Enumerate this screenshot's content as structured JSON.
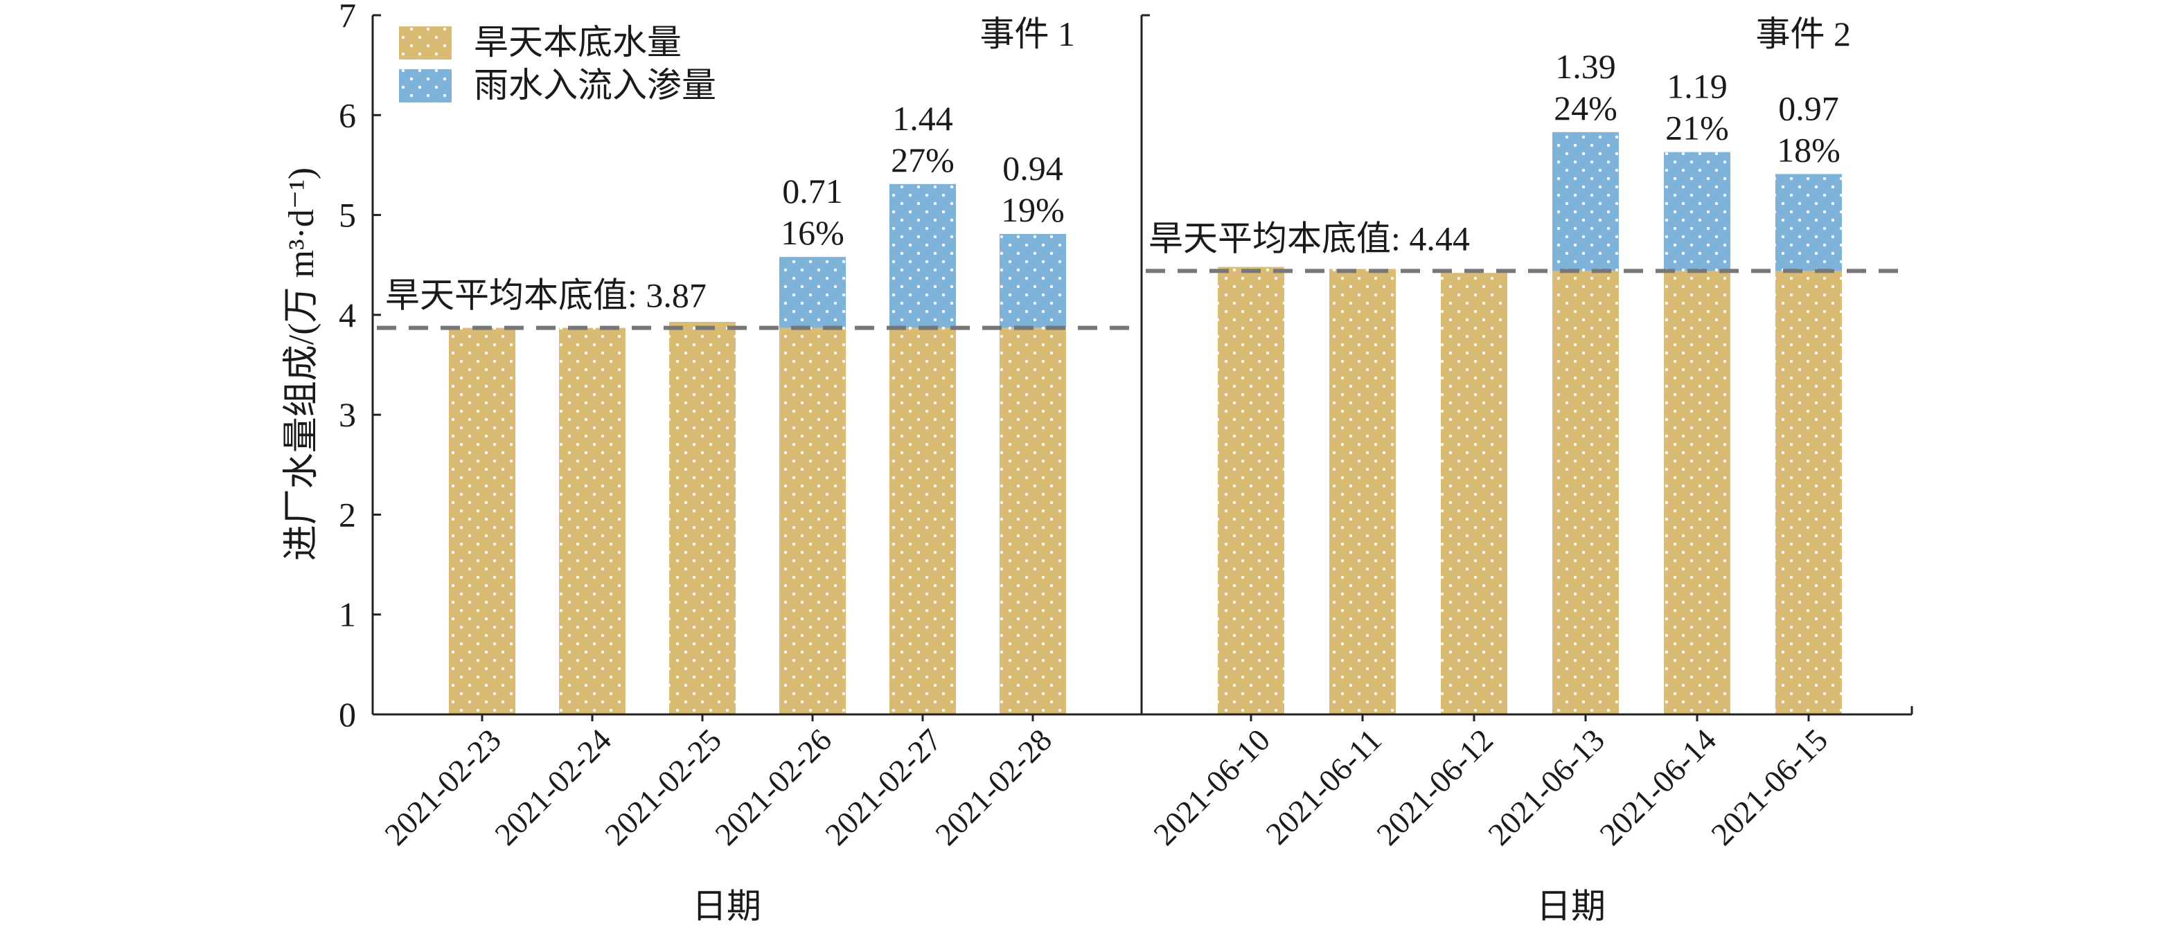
{
  "chart_data": {
    "type": "bar",
    "stacked": true,
    "ylabel": "进厂水量组成/(万 m³·d⁻¹)",
    "ylim": [
      0,
      7
    ],
    "yticks": [
      0,
      1,
      2,
      3,
      4,
      5,
      6,
      7
    ],
    "grid": false,
    "legend": {
      "position": "top-left",
      "items": [
        {
          "label": "旱天本底水量",
          "color": "#d9bb73"
        },
        {
          "label": "雨水入流入渗量",
          "color": "#7db3d8"
        }
      ]
    },
    "panels": [
      {
        "event_label": "事件 1",
        "xlabel": "日期",
        "categories": [
          "2021-02-23",
          "2021-02-24",
          "2021-02-25",
          "2021-02-26",
          "2021-02-27",
          "2021-02-28"
        ],
        "series": [
          {
            "name": "旱天本底水量",
            "values": [
              3.87,
              3.87,
              3.93,
              3.87,
              3.87,
              3.87
            ]
          },
          {
            "name": "雨水入流入渗量",
            "values": [
              0,
              0,
              0,
              0.71,
              1.44,
              0.94
            ]
          }
        ],
        "labels": [
          {
            "value": "",
            "percent": ""
          },
          {
            "value": "",
            "percent": ""
          },
          {
            "value": "",
            "percent": ""
          },
          {
            "value": "0.71",
            "percent": "16%"
          },
          {
            "value": "1.44",
            "percent": "27%"
          },
          {
            "value": "0.94",
            "percent": "19%"
          }
        ],
        "baseline": {
          "value": 3.87,
          "label": "旱天平均本底值: 3.87"
        }
      },
      {
        "event_label": "事件 2",
        "xlabel": "日期",
        "categories": [
          "2021-06-10",
          "2021-06-11",
          "2021-06-12",
          "2021-06-13",
          "2021-06-14",
          "2021-06-15"
        ],
        "series": [
          {
            "name": "旱天本底水量",
            "values": [
              4.48,
              4.46,
              4.42,
              4.44,
              4.44,
              4.44
            ]
          },
          {
            "name": "雨水入流入渗量",
            "values": [
              0,
              0,
              0,
              1.39,
              1.19,
              0.97
            ]
          }
        ],
        "labels": [
          {
            "value": "",
            "percent": ""
          },
          {
            "value": "",
            "percent": ""
          },
          {
            "value": "",
            "percent": ""
          },
          {
            "value": "1.39",
            "percent": "24%"
          },
          {
            "value": "1.19",
            "percent": "21%"
          },
          {
            "value": "0.97",
            "percent": "18%"
          }
        ],
        "baseline": {
          "value": 4.44,
          "label": "旱天平均本底值: 4.44"
        }
      }
    ]
  }
}
